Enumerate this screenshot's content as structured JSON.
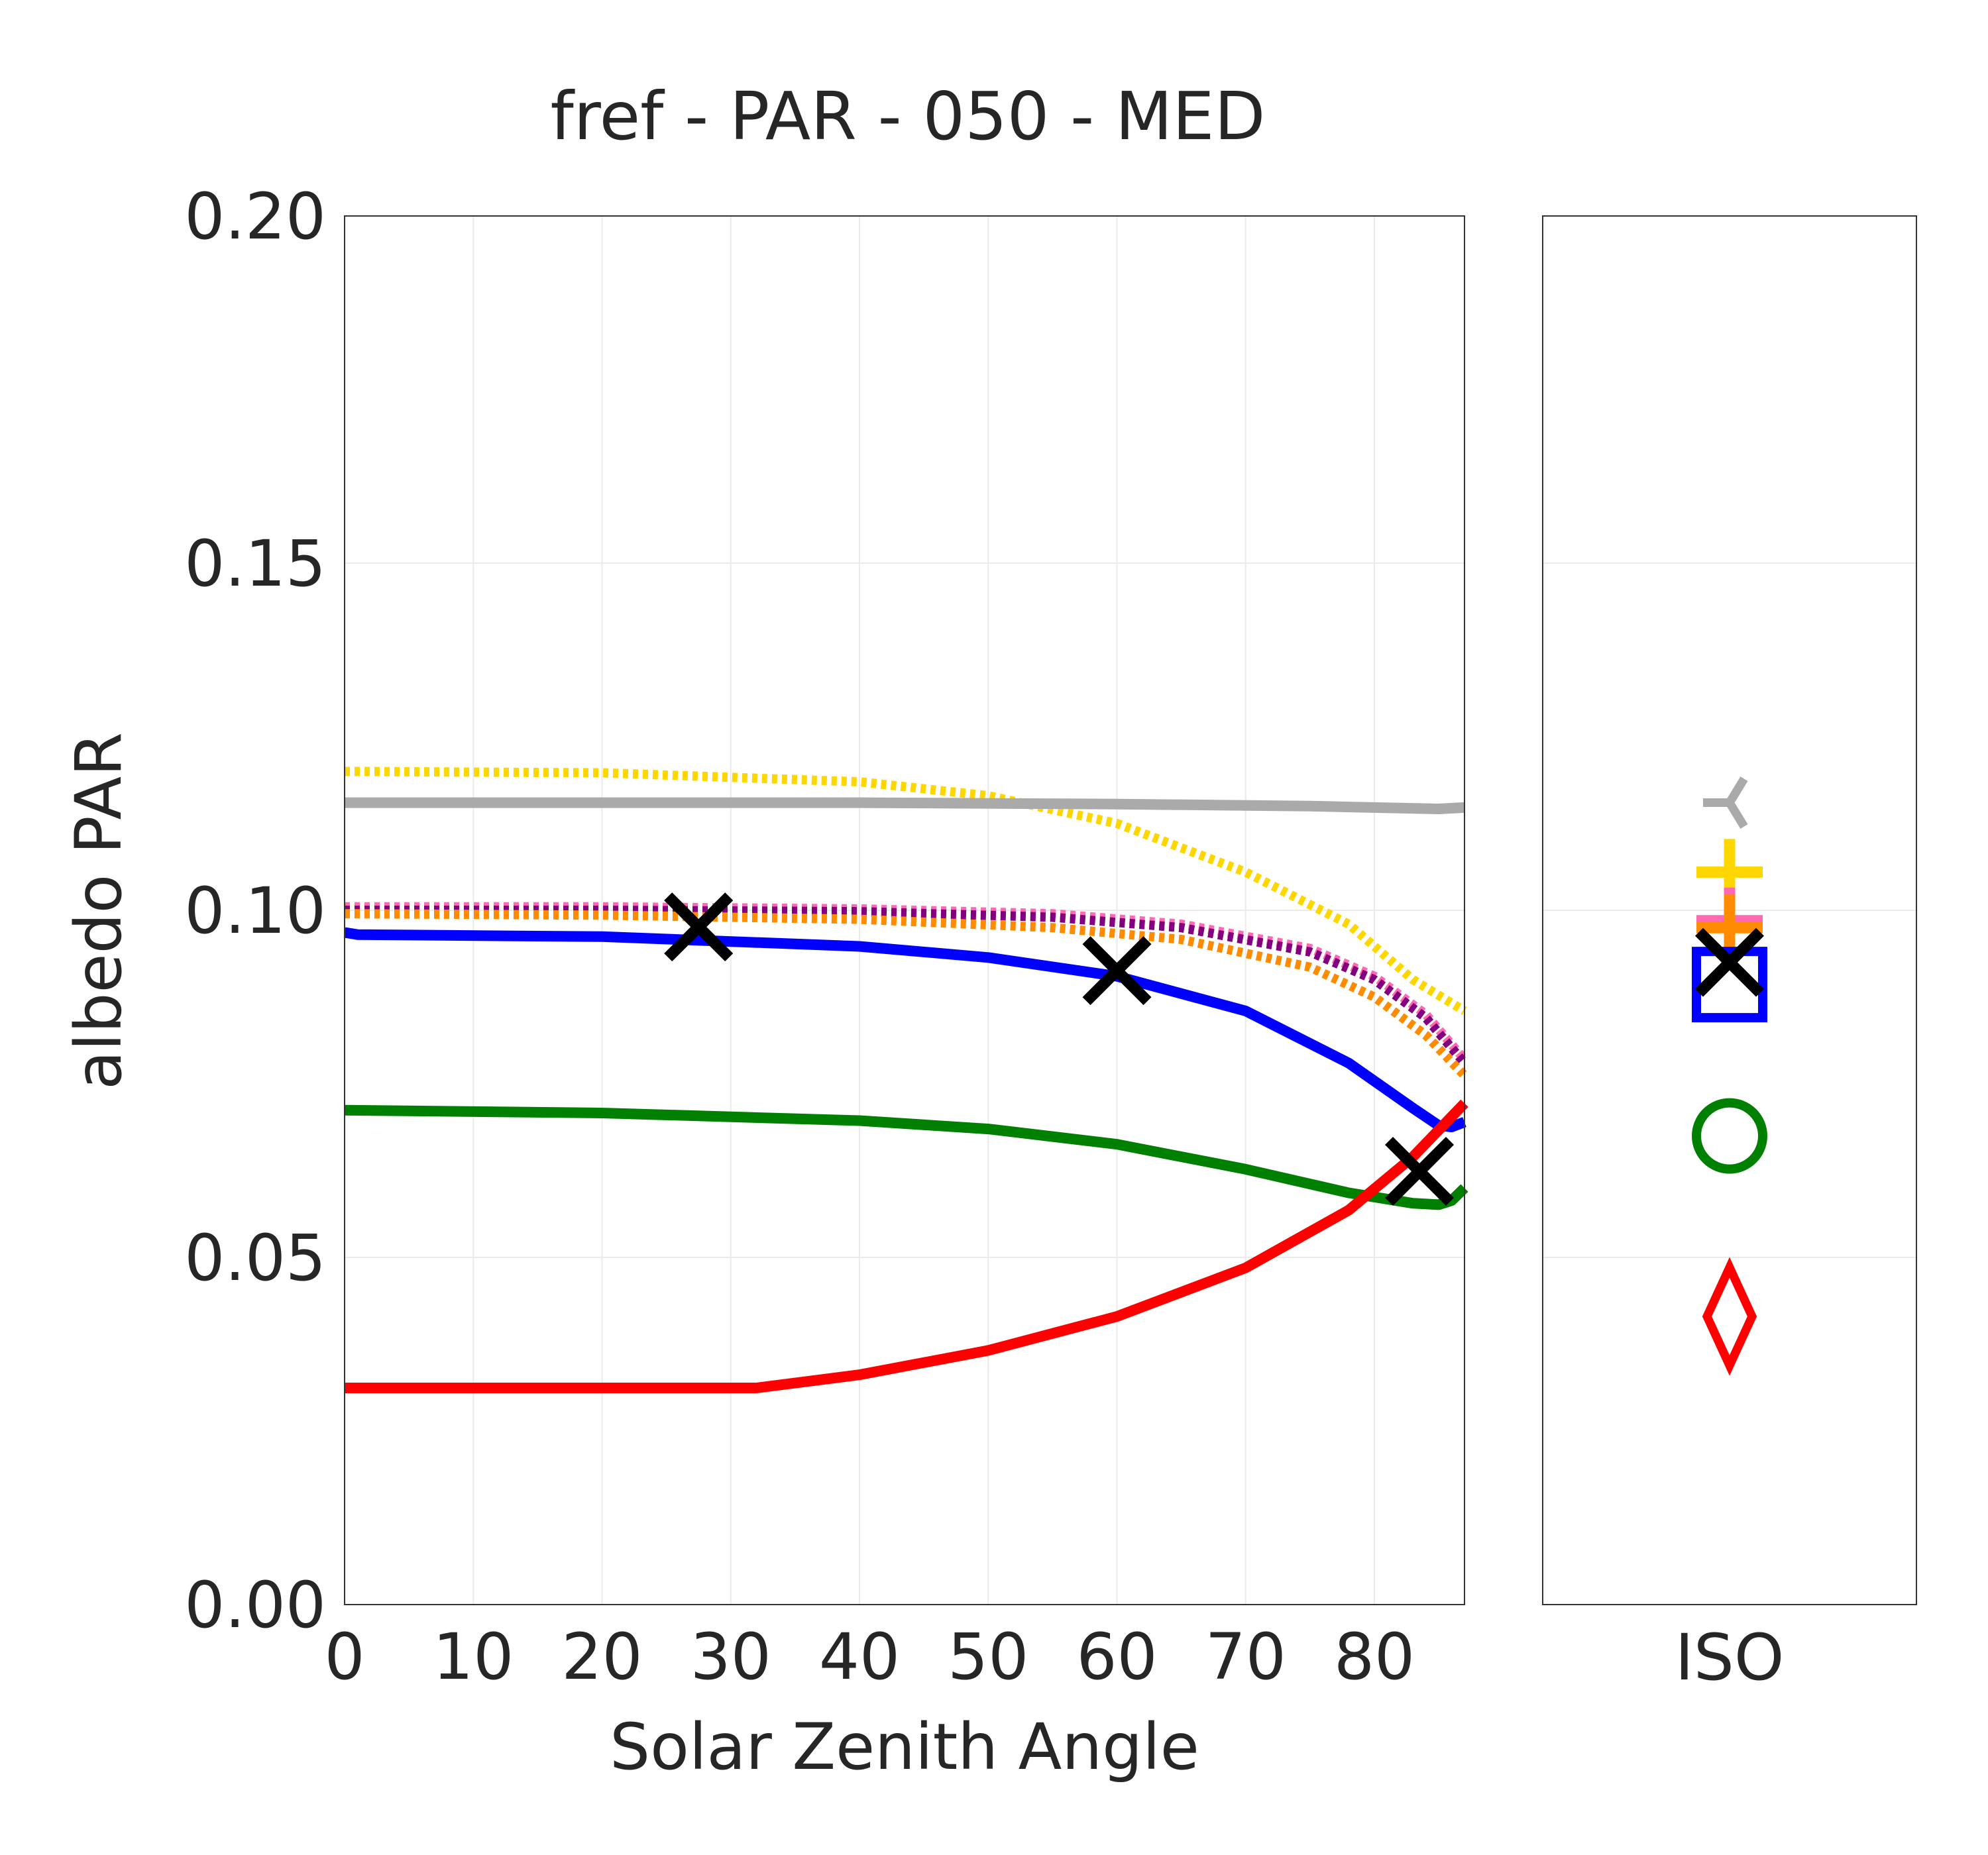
{
  "chart_data": {
    "type": "line",
    "title": "fref - PAR - 050 - MED",
    "xlabel": "Solar Zenith Angle",
    "ylabel": "albedo PAR",
    "xlim": [
      0,
      87
    ],
    "ylim": [
      0,
      0.2
    ],
    "xticks": [
      "0",
      "10",
      "20",
      "30",
      "40",
      "50",
      "60",
      "70",
      "80"
    ],
    "yticks": [
      "0.00",
      "0.05",
      "0.10",
      "0.15",
      "0.20"
    ],
    "grid": true,
    "series": [
      {
        "color": "#ffd700",
        "style": "dotted",
        "x": [
          0,
          20,
          40,
          50,
          60,
          70,
          78,
          83,
          87
        ],
        "y": [
          0.12,
          0.1198,
          0.1185,
          0.1165,
          0.1125,
          0.1055,
          0.098,
          0.09,
          0.0855
        ]
      },
      {
        "color": "#aaaaaa",
        "style": "solid",
        "x": [
          0,
          20,
          40,
          60,
          75,
          85,
          87
        ],
        "y": [
          0.1155,
          0.1155,
          0.1155,
          0.1153,
          0.115,
          0.1146,
          0.1148
        ]
      },
      {
        "color": "#ff69b4",
        "style": "dotted",
        "x": [
          0,
          20,
          40,
          55,
          65,
          75,
          80,
          84,
          87
        ],
        "y": [
          0.1005,
          0.1005,
          0.1002,
          0.0995,
          0.098,
          0.0945,
          0.0905,
          0.085,
          0.0785
        ]
      },
      {
        "color": "#800080",
        "style": "dotted",
        "x": [
          0,
          20,
          40,
          55,
          65,
          75,
          80,
          84,
          87
        ],
        "y": [
          0.1,
          0.1,
          0.0998,
          0.099,
          0.0975,
          0.094,
          0.09,
          0.0845,
          0.078
        ]
      },
      {
        "color": "#ff8c00",
        "style": "dotted",
        "x": [
          0,
          20,
          40,
          55,
          65,
          75,
          80,
          84,
          87
        ],
        "y": [
          0.0995,
          0.0993,
          0.0987,
          0.0975,
          0.0958,
          0.0918,
          0.0875,
          0.082,
          0.0762
        ]
      },
      {
        "color": "#0000ff",
        "style": "solid",
        "x": [
          0,
          1,
          20,
          40,
          50,
          60,
          70,
          78,
          83,
          85,
          86,
          87
        ],
        "y": [
          0.0968,
          0.0965,
          0.0962,
          0.0948,
          0.0932,
          0.0905,
          0.0855,
          0.078,
          0.0715,
          0.069,
          0.0688,
          0.0695
        ]
      },
      {
        "color": "#008000",
        "style": "solid",
        "x": [
          0,
          20,
          40,
          50,
          60,
          70,
          78,
          83,
          85,
          86,
          87
        ],
        "y": [
          0.0712,
          0.0708,
          0.0697,
          0.0685,
          0.0663,
          0.0627,
          0.0593,
          0.0578,
          0.0576,
          0.0582,
          0.06
        ]
      },
      {
        "color": "#ff0000",
        "style": "solid",
        "x": [
          0,
          32,
          40,
          50,
          60,
          70,
          78,
          83,
          87
        ],
        "y": [
          0.0312,
          0.0312,
          0.0331,
          0.0366,
          0.0415,
          0.0485,
          0.0568,
          0.0645,
          0.0722
        ]
      }
    ],
    "markers": [
      {
        "symbol": "x",
        "color": "#000000",
        "x": 27.5,
        "y": 0.0976
      },
      {
        "symbol": "x",
        "color": "#000000",
        "x": 60,
        "y": 0.0913
      },
      {
        "symbol": "x",
        "color": "#000000",
        "x": 83.5,
        "y": 0.0624
      }
    ],
    "iso_panel": {
      "category": "ISO",
      "ylim": [
        0,
        0.2
      ],
      "points": [
        {
          "symbol": "tri_left",
          "color": "#aaaaaa",
          "y": 0.1155
        },
        {
          "symbol": "plus",
          "color": "#ffd700",
          "y": 0.1055
        },
        {
          "symbol": "plus",
          "color": "#ff69b4",
          "y": 0.0985
        },
        {
          "symbol": "plus",
          "color": "#ff8c00",
          "y": 0.0975
        },
        {
          "symbol": "square",
          "color": "#0000ff",
          "y": 0.0893
        },
        {
          "symbol": "x",
          "color": "#000000",
          "y": 0.0925
        },
        {
          "symbol": "circle",
          "color": "#008000",
          "y": 0.0675
        },
        {
          "symbol": "diamond",
          "color": "#ff0000",
          "y": 0.0415
        }
      ]
    }
  }
}
